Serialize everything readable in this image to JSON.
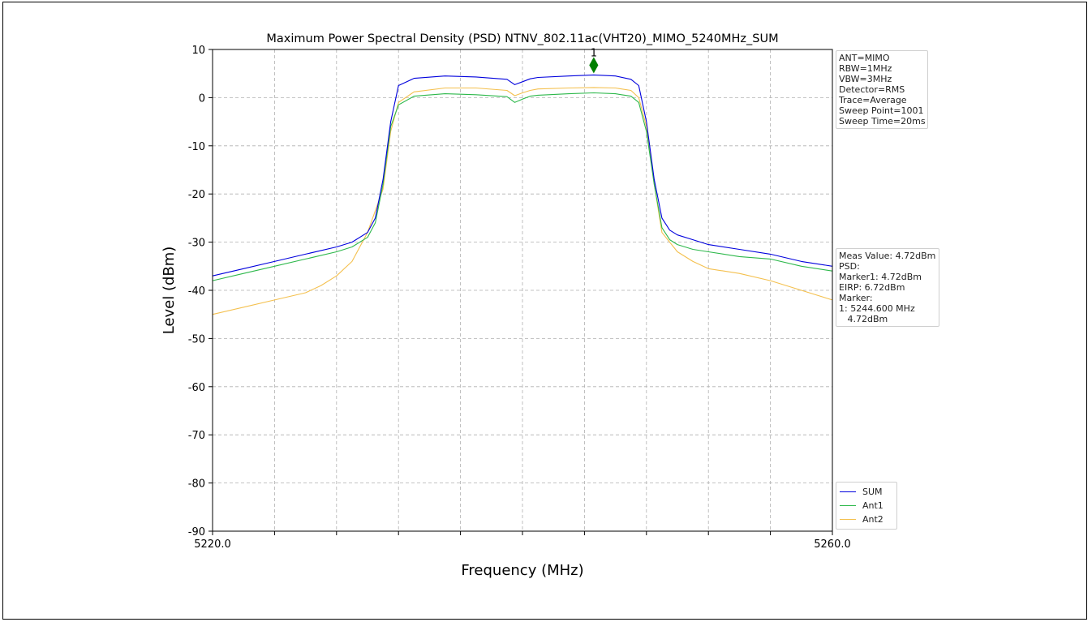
{
  "chart_data": {
    "type": "line",
    "title": "Maximum Power Spectral Density (PSD) NTNV_802.11ac(VHT20)_MIMO_5240MHz_SUM",
    "xlabel": "Frequency (MHz)",
    "ylabel": "Level (dBm)",
    "xlim": [
      5220.0,
      5260.0
    ],
    "ylim": [
      -90,
      10
    ],
    "x_tick_labels": [
      "5220.0",
      "5260.0"
    ],
    "y_ticks": [
      10,
      0,
      -10,
      -20,
      -30,
      -40,
      -50,
      -60,
      -70,
      -80,
      -90
    ],
    "grid": true,
    "legend_position": "lower-right outside",
    "series": [
      {
        "name": "SUM",
        "color": "#0000dd",
        "x": [
          5220,
          5222,
          5224,
          5226,
          5228,
          5229,
          5230,
          5230.5,
          5231,
          5231.5,
          5232,
          5233,
          5235,
          5237,
          5239,
          5239.5,
          5240,
          5240.5,
          5241,
          5243,
          5244.6,
          5246,
          5247,
          5247.5,
          5248,
          5248.5,
          5249,
          5249.5,
          5250,
          5251,
          5252,
          5254,
          5256,
          5258,
          5260
        ],
        "y": [
          -37,
          -35.5,
          -34,
          -32.5,
          -31,
          -30,
          -28,
          -25,
          -17,
          -5,
          2.5,
          4,
          4.5,
          4.3,
          3.8,
          2.7,
          3.3,
          3.9,
          4.2,
          4.5,
          4.72,
          4.5,
          3.8,
          2.5,
          -5,
          -17,
          -25,
          -27.5,
          -28.5,
          -29.5,
          -30.5,
          -31.5,
          -32.5,
          -34,
          -35
        ]
      },
      {
        "name": "Ant1",
        "color": "#2db84b",
        "x": [
          5220,
          5222,
          5224,
          5226,
          5228,
          5229,
          5230,
          5230.5,
          5231,
          5231.5,
          5232,
          5233,
          5235,
          5237,
          5239,
          5239.5,
          5240,
          5240.5,
          5241,
          5243,
          5244.6,
          5246,
          5247,
          5247.5,
          5248,
          5248.5,
          5249,
          5249.5,
          5250,
          5251,
          5252,
          5254,
          5256,
          5258,
          5260
        ],
        "y": [
          -38,
          -36.5,
          -35,
          -33.5,
          -32,
          -31,
          -29,
          -26,
          -18,
          -6,
          -1.5,
          0.3,
          0.8,
          0.6,
          0.2,
          -1,
          -0.3,
          0.3,
          0.5,
          0.8,
          1,
          0.8,
          0.3,
          -1,
          -7,
          -18,
          -27,
          -29.5,
          -30.5,
          -31.5,
          -32,
          -33,
          -33.5,
          -35,
          -36
        ]
      },
      {
        "name": "Ant2",
        "color": "#f4c04e",
        "x": [
          5220,
          5222,
          5224,
          5226,
          5227,
          5228,
          5229,
          5230,
          5231,
          5231.5,
          5232,
          5233,
          5235,
          5237,
          5239,
          5239.5,
          5240,
          5240.5,
          5241,
          5243,
          5244.6,
          5246,
          5247,
          5247.5,
          5248,
          5248.5,
          5249,
          5250,
          5251,
          5252,
          5254,
          5256,
          5258,
          5260
        ],
        "y": [
          -45,
          -43.5,
          -42,
          -40.5,
          -39,
          -37,
          -34,
          -28,
          -19,
          -7,
          -1,
          1.2,
          2,
          2,
          1.5,
          0.4,
          1,
          1.5,
          1.8,
          2,
          2.1,
          2,
          1.5,
          0,
          -6,
          -18,
          -28,
          -32,
          -34,
          -35.5,
          -36.5,
          -38,
          -40,
          -42
        ]
      }
    ],
    "marker": {
      "label": "1",
      "x": 5244.6,
      "y": 4.72,
      "color": "#008000"
    }
  },
  "info_box": {
    "lines": [
      "ANT=MIMO",
      "RBW=1MHz",
      "VBW=3MHz",
      "Detector=RMS",
      "Trace=Average",
      "Sweep Point=1001",
      "Sweep Time=20ms"
    ]
  },
  "measurement_box": {
    "lines": [
      "Meas Value: 4.72dBm",
      "PSD:",
      "Marker1: 4.72dBm",
      "EIRP: 6.72dBm",
      "Marker:",
      "1: 5244.600 MHz",
      "   4.72dBm"
    ]
  }
}
